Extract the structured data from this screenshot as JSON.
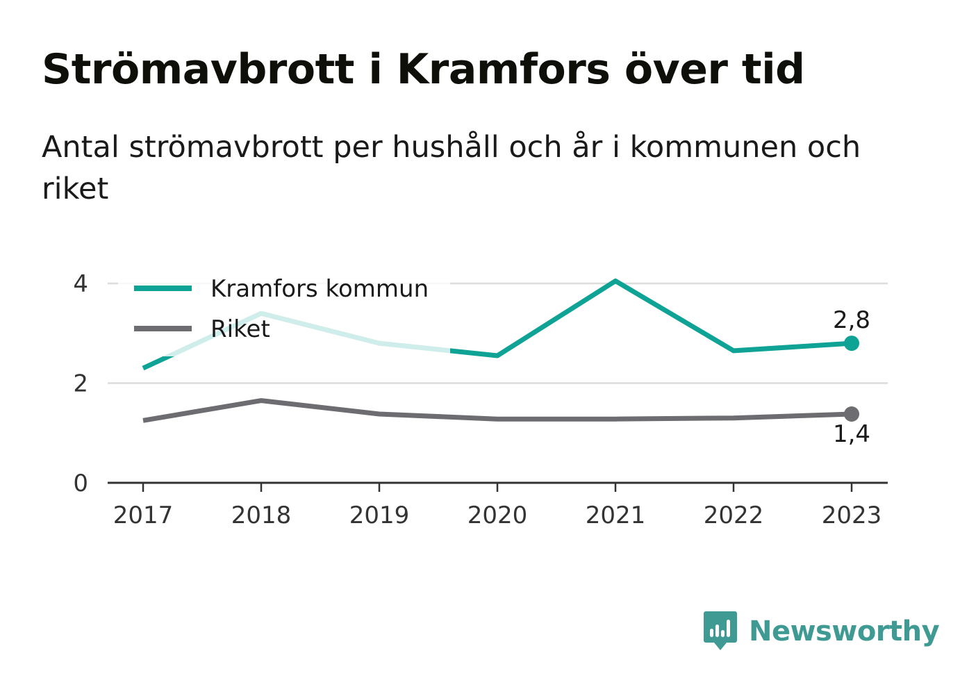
{
  "title": "Strömavbrott i Kramfors över tid",
  "subtitle": "Antal strömavbrott per hushåll och år i kommunen och riket",
  "brand": {
    "name": "Newsworthy",
    "icon": "newsworthy-bar-chart-icon",
    "color": "#3e9a93"
  },
  "chart_data": {
    "type": "line",
    "title": "Strömavbrott i Kramfors över tid",
    "subtitle": "Antal strömavbrott per hushåll och år i kommunen och riket",
    "xlabel": "",
    "ylabel": "",
    "categories": [
      "2017",
      "2018",
      "2019",
      "2020",
      "2021",
      "2022",
      "2023"
    ],
    "ylim": [
      0,
      4
    ],
    "yticks": [
      0,
      2,
      4
    ],
    "ytick_labels": [
      "0",
      "2",
      "4"
    ],
    "grid": true,
    "legend": "top-left",
    "series": [
      {
        "name": "Kramfors kommun",
        "color": "#0fa396",
        "values": [
          2.3,
          3.4,
          2.8,
          2.55,
          4.05,
          2.65,
          2.8
        ],
        "end_label": "2,8"
      },
      {
        "name": "Riket",
        "color": "#6d6c71",
        "values": [
          1.25,
          1.65,
          1.38,
          1.28,
          1.28,
          1.3,
          1.38
        ],
        "end_label": "1,4"
      }
    ]
  }
}
